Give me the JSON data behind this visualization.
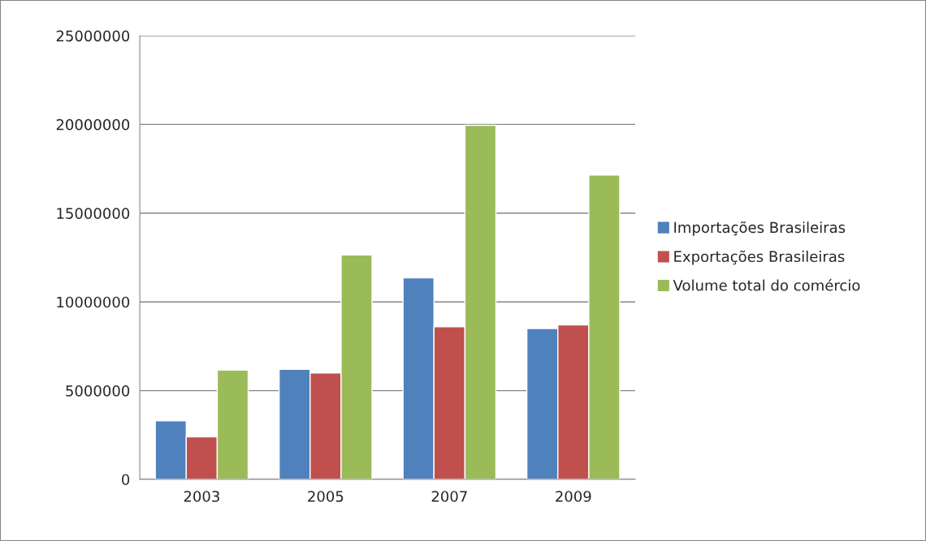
{
  "chart_data": {
    "type": "bar",
    "categories": [
      "2003",
      "2005",
      "2007",
      "2009"
    ],
    "series": [
      {
        "name": "Importações Brasileiras",
        "color": "#4f81bd",
        "values": [
          3300000,
          6200000,
          11350000,
          8500000
        ]
      },
      {
        "name": "Exportações Brasileiras",
        "color": "#c0504d",
        "values": [
          2400000,
          6000000,
          8600000,
          8700000
        ]
      },
      {
        "name": "Volume total do comércio",
        "color": "#9bbb59",
        "values": [
          6150000,
          12650000,
          19950000,
          17150000
        ]
      }
    ],
    "ylim": [
      0,
      25000000
    ],
    "yticks": [
      0,
      5000000,
      10000000,
      15000000,
      20000000,
      25000000
    ],
    "grid": "y",
    "legend": "right"
  }
}
